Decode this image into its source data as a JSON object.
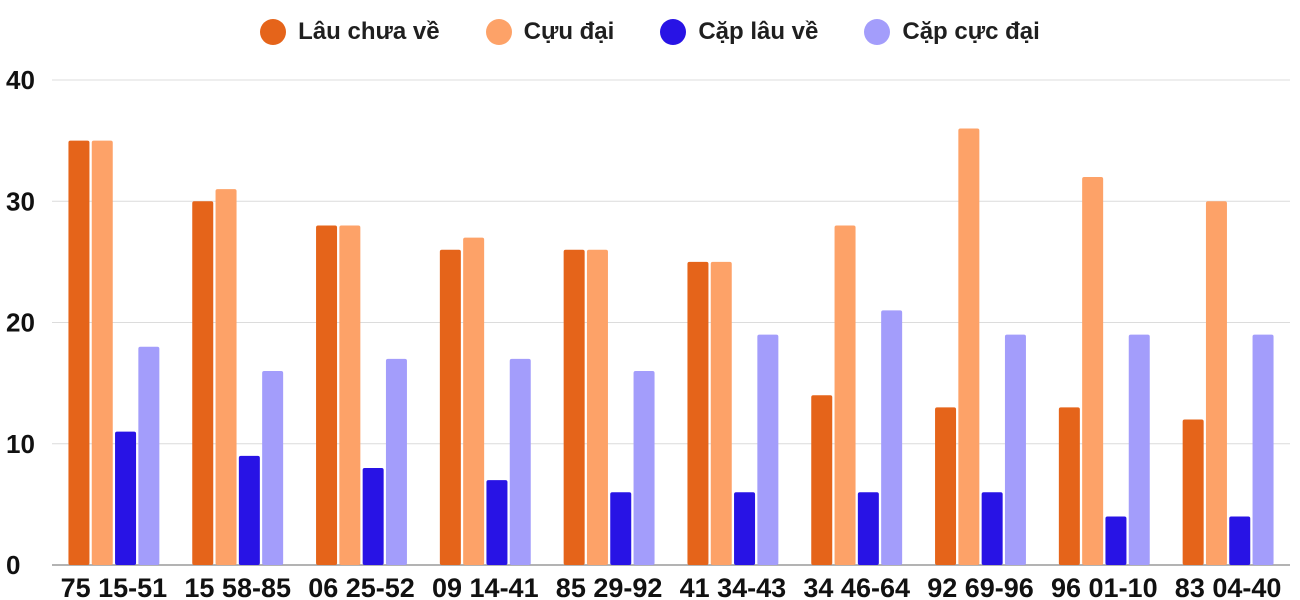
{
  "chart_data": {
    "type": "bar",
    "categories": [
      "75 15-51",
      "15 58-85",
      "06 25-52",
      "09 14-41",
      "85 29-92",
      "41 34-43",
      "34 46-64",
      "92 69-96",
      "96 01-10",
      "83 04-40"
    ],
    "series": [
      {
        "name": "Lâu chưa về",
        "color": "#e5641a",
        "values": [
          35,
          30,
          28,
          26,
          26,
          25,
          14,
          13,
          13,
          12
        ]
      },
      {
        "name": "Cựu đại",
        "color": "#fda268",
        "values": [
          35,
          31,
          28,
          27,
          26,
          25,
          28,
          36,
          32,
          30
        ]
      },
      {
        "name": "Cặp lâu về",
        "color": "#2813e5",
        "values": [
          11,
          9,
          8,
          7,
          6,
          6,
          6,
          6,
          4,
          4
        ]
      },
      {
        "name": "Cặp cực đại",
        "color": "#a39dfb",
        "values": [
          18,
          16,
          17,
          17,
          16,
          19,
          21,
          19,
          19,
          19
        ]
      }
    ],
    "yticks": [
      0,
      10,
      20,
      30,
      40
    ],
    "ylim": [
      0,
      40
    ],
    "grid": true,
    "legend_position": "top"
  }
}
